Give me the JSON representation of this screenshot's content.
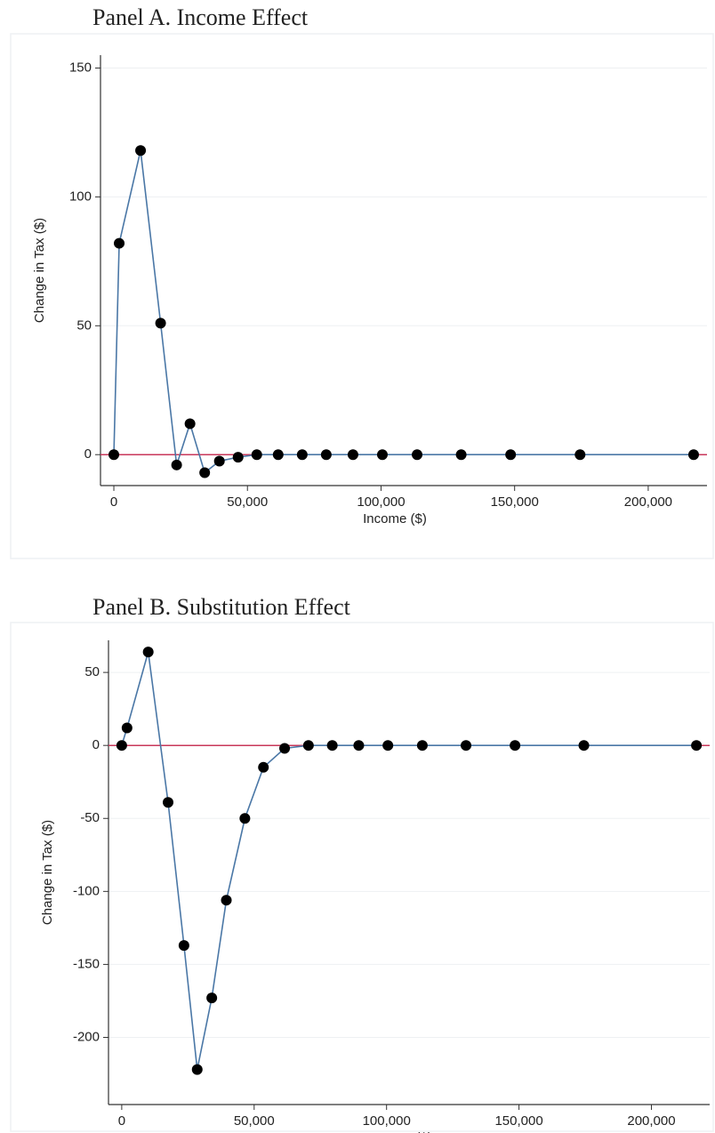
{
  "chart_data": [
    {
      "type": "line",
      "title": "Panel A. Income Effect",
      "xlabel": "Income ($)",
      "ylabel": "Change in Tax ($)",
      "x": [
        0,
        2000,
        10000,
        17500,
        23500,
        28500,
        34000,
        39500,
        46500,
        53500,
        61500,
        70500,
        79500,
        89500,
        100500,
        113500,
        130000,
        148500,
        174500,
        217000
      ],
      "series": [
        {
          "color": "#4a77a6",
          "values": [
            0,
            82,
            118,
            51,
            -4,
            12,
            -7,
            -2.5,
            -1,
            0,
            0,
            0,
            0,
            0,
            0,
            0,
            0,
            0,
            0,
            0
          ]
        }
      ],
      "xlim": [
        -5000,
        222000
      ],
      "xticks": [
        0,
        {
          "value": 50000,
          "label": "50,000"
        },
        {
          "value": 100000,
          "label": "100,000"
        },
        {
          "value": 150000,
          "label": "150,000"
        },
        {
          "value": 200000,
          "label": "200,000"
        }
      ],
      "ylim": [
        -12,
        155
      ],
      "yticks": [
        0,
        50,
        100,
        150
      ],
      "grid": true,
      "hline": 0,
      "hline_color": "#c8375a"
    },
    {
      "type": "line",
      "title": "Panel B. Substitution Effect",
      "xlabel": "Income ($)",
      "ylabel": "Change in Tax ($)",
      "x": [
        0,
        2000,
        10000,
        17500,
        23500,
        28500,
        34000,
        39500,
        46500,
        53500,
        61500,
        70500,
        79500,
        89500,
        100500,
        113500,
        130000,
        148500,
        174500,
        217000
      ],
      "series": [
        {
          "color": "#4a77a6",
          "values": [
            0,
            12,
            64,
            -39,
            -137,
            -222,
            -173,
            -106,
            -50,
            -15,
            -2,
            0,
            0,
            0,
            0,
            0,
            0,
            0,
            0,
            0
          ]
        }
      ],
      "xlim": [
        -5000,
        222000
      ],
      "xticks": [
        0,
        {
          "value": 50000,
          "label": "50,000"
        },
        {
          "value": 100000,
          "label": "100,000"
        },
        {
          "value": 150000,
          "label": "150,000"
        },
        {
          "value": 200000,
          "label": "200,000"
        }
      ],
      "ylim": [
        -246,
        72
      ],
      "yticks": [
        -200,
        -150,
        -100,
        -50,
        0,
        50
      ],
      "grid": true,
      "hline": 0,
      "hline_color": "#c8375a"
    }
  ]
}
